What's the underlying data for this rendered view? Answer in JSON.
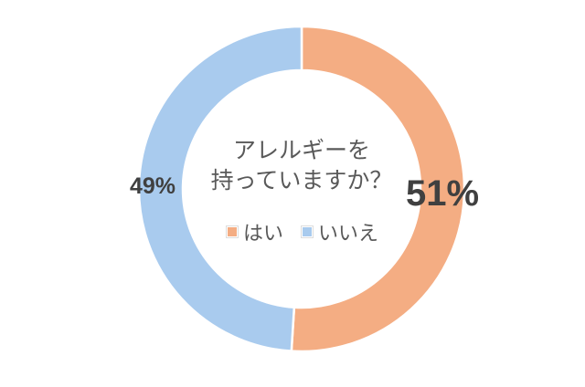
{
  "chart_data": {
    "type": "pie",
    "donut": true,
    "title": [
      "アレルギーを",
      "持っていますか？"
    ],
    "categories": [
      "はい",
      "いいえ"
    ],
    "values": [
      51,
      49
    ],
    "labels": [
      "51%",
      "49%"
    ],
    "colors": [
      "#F4AD83",
      "#A9CBEE"
    ],
    "start": "top",
    "direction": "clockwise",
    "legend": "center"
  }
}
